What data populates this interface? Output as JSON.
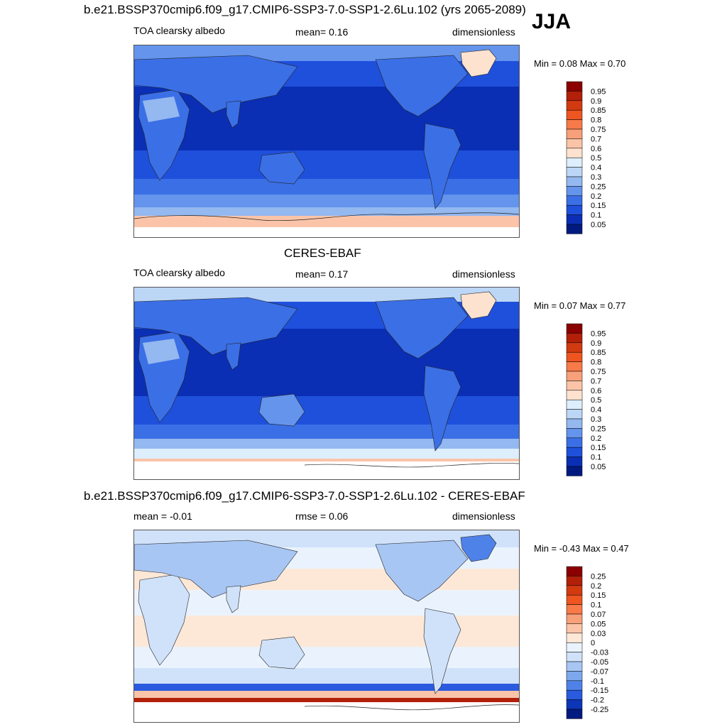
{
  "season": "JJA",
  "panels": [
    {
      "title": "b.e21.BSSP370cmip6.f09_g17.CMIP6-SSP3-7.0-SSP1-2.6Lu.102 (yrs 2065-2089)",
      "left_label": "TOA clearsky albedo",
      "center_label": "mean=   0.16",
      "right_label": "dimensionless",
      "minmax": "Min =   0.08 Max =   0.70",
      "palette": "albedo"
    },
    {
      "title": "CERES-EBAF",
      "left_label": "TOA clearsky albedo",
      "center_label": "mean=   0.17",
      "right_label": "dimensionless",
      "minmax": "Min =   0.07 Max =   0.77",
      "palette": "albedo"
    },
    {
      "title": "b.e21.BSSP370cmip6.f09_g17.CMIP6-SSP3-7.0-SSP1-2.6Lu.102 - CERES-EBAF",
      "left_label": "mean =  -0.01",
      "center_label": "rmse =   0.06",
      "right_label": "dimensionless",
      "minmax": "Min =  -0.43 Max =   0.47",
      "palette": "diff"
    }
  ],
  "colorbars": {
    "albedo": {
      "labels": [
        "0.95",
        "0.9",
        "0.85",
        "0.8",
        "0.75",
        "0.7",
        "0.6",
        "0.5",
        "0.4",
        "0.3",
        "0.25",
        "0.2",
        "0.15",
        "0.1",
        "0.05"
      ],
      "colors": [
        "#8b0000",
        "#b2200a",
        "#d23a10",
        "#ee5520",
        "#f77a48",
        "#f8a07a",
        "#fbc4a8",
        "#fde2cf",
        "#ddeefc",
        "#bcd6f6",
        "#94b8f0",
        "#6494ec",
        "#3b6fe6",
        "#1f50dc",
        "#0a2fb4",
        "#001a80"
      ]
    },
    "diff": {
      "labels": [
        "0.25",
        "0.2",
        "0.15",
        "0.1",
        "0.07",
        "0.05",
        "0.03",
        "0",
        "-0.03",
        "-0.05",
        "-0.07",
        "-0.1",
        "-0.15",
        "-0.2",
        "-0.25"
      ],
      "colors": [
        "#8b0000",
        "#b2200a",
        "#d23a10",
        "#ee5520",
        "#f77a48",
        "#f8a07a",
        "#fbc4a8",
        "#fde8d8",
        "#eaf3fd",
        "#d0e2fa",
        "#a8c6f3",
        "#7ea8ee",
        "#4f82e8",
        "#2a5ade",
        "#0c36b8",
        "#001a80"
      ]
    }
  }
}
